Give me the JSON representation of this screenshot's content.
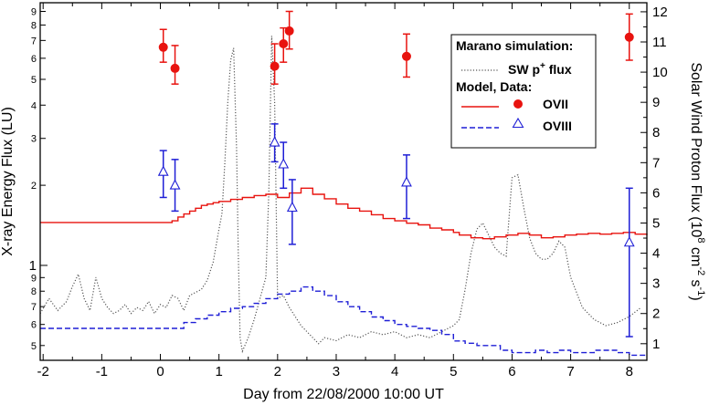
{
  "chart_data": {
    "type": "line",
    "xlabel": "Day from 22/08/2000 10:00 UT",
    "ylabel_left": "X-ray Energy Flux (LU)",
    "ylabel_right_parts": [
      "Solar Wind Proton Flux (10",
      "8",
      " cm",
      "-2",
      " s",
      "-1",
      ")"
    ],
    "xlim": [
      -2.05,
      8.3
    ],
    "ylim_left": [
      0.44,
      9.7
    ],
    "yscale_left": "log",
    "ylim_right": [
      0.45,
      12.3
    ],
    "x_ticks": [
      "-2",
      "-1",
      "0",
      "1",
      "2",
      "3",
      "4",
      "5",
      "6",
      "7",
      "8"
    ],
    "x_tick_values": [
      -2,
      -1,
      0,
      1,
      2,
      3,
      4,
      5,
      6,
      7,
      8
    ],
    "y_left_major_ticks": [
      {
        "value": 1,
        "label": "1"
      },
      {
        "value": 2,
        "label": "2"
      },
      {
        "value": 3,
        "label": "3"
      },
      {
        "value": 4,
        "label": "4"
      },
      {
        "value": 5,
        "label": "5"
      },
      {
        "value": 6,
        "label": "6"
      },
      {
        "value": 7,
        "label": "7"
      },
      {
        "value": 8,
        "label": "8"
      },
      {
        "value": 9,
        "label": "9"
      }
    ],
    "y_left_minor_ticks": [
      {
        "value": 0.5,
        "label": "5"
      },
      {
        "value": 0.6,
        "label": "6"
      },
      {
        "value": 0.7,
        "label": "7"
      },
      {
        "value": 0.8,
        "label": "8"
      },
      {
        "value": 0.9,
        "label": "9"
      }
    ],
    "y_right_ticks": [
      "1",
      "2",
      "3",
      "4",
      "5",
      "6",
      "7",
      "8",
      "9",
      "10",
      "11",
      "12"
    ],
    "legend": {
      "position": "top-right",
      "title": "Marano simulation:",
      "entries": [
        {
          "label": "SW p",
          "sup": "+",
          "rest": " flux",
          "style": "dotted",
          "color": "#555555"
        },
        {
          "label": "Model, Data:",
          "style": "none"
        },
        {
          "label": "OVII",
          "style": "solid",
          "marker": "filled-circle",
          "color": "#e8130f"
        },
        {
          "label": "OVIII",
          "style": "dashed",
          "marker": "open-triangle",
          "color": "#1f1fd6"
        }
      ]
    },
    "series": [
      {
        "name": "SW p+ flux",
        "axis": "right",
        "color": "#555555",
        "style": "dotted",
        "x": [
          -2.05,
          -1.9,
          -1.75,
          -1.6,
          -1.5,
          -1.4,
          -1.3,
          -1.2,
          -1.1,
          -1.0,
          -0.9,
          -0.8,
          -0.7,
          -0.6,
          -0.5,
          -0.4,
          -0.3,
          -0.2,
          -0.1,
          0.0,
          0.1,
          0.2,
          0.3,
          0.4,
          0.5,
          0.6,
          0.7,
          0.8,
          0.9,
          1.0,
          1.05,
          1.1,
          1.15,
          1.2,
          1.25,
          1.3,
          1.33,
          1.36,
          1.4,
          1.5,
          1.6,
          1.7,
          1.8,
          1.85,
          1.9,
          1.95,
          2.0,
          2.1,
          2.2,
          2.3,
          2.4,
          2.5,
          2.6,
          2.7,
          2.8,
          3.0,
          3.2,
          3.4,
          3.6,
          3.8,
          4.0,
          4.2,
          4.4,
          4.6,
          4.8,
          5.0,
          5.1,
          5.2,
          5.3,
          5.4,
          5.5,
          5.6,
          5.7,
          5.8,
          5.9,
          6.0,
          6.1,
          6.2,
          6.3,
          6.4,
          6.5,
          6.6,
          6.7,
          6.8,
          6.9,
          7.0,
          7.2,
          7.4,
          7.6,
          7.8,
          8.0,
          8.2
        ],
        "values": [
          2.0,
          2.5,
          2.1,
          2.4,
          2.9,
          3.3,
          2.5,
          2.1,
          3.2,
          2.5,
          2.2,
          2.0,
          2.1,
          2.3,
          2.0,
          2.2,
          2.1,
          2.4,
          2.0,
          2.3,
          2.2,
          2.6,
          2.5,
          2.1,
          2.6,
          2.7,
          2.8,
          3.1,
          3.7,
          4.8,
          5.3,
          7.0,
          9.0,
          10.4,
          10.8,
          7.5,
          4.0,
          1.2,
          0.75,
          1.2,
          1.8,
          2.5,
          3.2,
          6.0,
          11.2,
          9.0,
          2.5,
          2.6,
          2.2,
          1.9,
          1.6,
          1.4,
          1.2,
          1.0,
          1.2,
          1.1,
          1.3,
          1.2,
          1.4,
          1.3,
          1.4,
          1.2,
          1.3,
          1.2,
          1.4,
          1.6,
          1.8,
          2.8,
          4.0,
          4.8,
          5.0,
          4.6,
          4.2,
          4.0,
          3.9,
          6.5,
          6.6,
          5.5,
          4.5,
          4.0,
          3.8,
          3.8,
          4.0,
          4.4,
          4.2,
          3.2,
          2.2,
          1.8,
          1.6,
          1.7,
          1.9,
          2.2
        ]
      },
      {
        "name": "OVII",
        "axis": "left",
        "color": "#e8130f",
        "style": "step",
        "x": [
          -2.05,
          0.2,
          0.3,
          0.4,
          0.5,
          0.6,
          0.7,
          0.8,
          0.9,
          1.0,
          1.2,
          1.4,
          1.6,
          1.8,
          2.0,
          2.2,
          2.4,
          2.6,
          2.8,
          3.0,
          3.2,
          3.4,
          3.6,
          3.8,
          4.0,
          4.2,
          4.4,
          4.6,
          4.8,
          5.0,
          5.1,
          5.3,
          5.5,
          5.7,
          5.9,
          6.1,
          6.3,
          6.5,
          6.7,
          6.9,
          7.1,
          7.3,
          7.5,
          7.7,
          7.9,
          8.1,
          8.3
        ],
        "values": [
          1.45,
          1.47,
          1.52,
          1.56,
          1.6,
          1.64,
          1.68,
          1.7,
          1.72,
          1.74,
          1.77,
          1.8,
          1.83,
          1.85,
          1.8,
          1.87,
          1.95,
          1.85,
          1.78,
          1.7,
          1.64,
          1.6,
          1.55,
          1.5,
          1.47,
          1.44,
          1.42,
          1.38,
          1.36,
          1.33,
          1.3,
          1.27,
          1.26,
          1.28,
          1.3,
          1.32,
          1.3,
          1.27,
          1.28,
          1.3,
          1.31,
          1.32,
          1.31,
          1.32,
          1.33,
          1.31,
          1.3
        ]
      },
      {
        "name": "OVIII",
        "axis": "left",
        "color": "#1f1fd6",
        "style": "step-dashed",
        "x": [
          -2.05,
          0.4,
          0.6,
          0.8,
          1.0,
          1.2,
          1.4,
          1.6,
          1.8,
          2.0,
          2.2,
          2.4,
          2.6,
          2.8,
          3.0,
          3.2,
          3.4,
          3.6,
          3.8,
          4.0,
          4.2,
          4.4,
          4.6,
          4.8,
          5.0,
          5.2,
          5.4,
          5.6,
          5.8,
          6.0,
          6.2,
          6.4,
          6.6,
          6.8,
          7.0,
          7.2,
          7.4,
          7.6,
          7.8,
          8.0,
          8.2,
          8.3
        ],
        "values": [
          0.58,
          0.61,
          0.63,
          0.65,
          0.67,
          0.69,
          0.7,
          0.72,
          0.75,
          0.78,
          0.8,
          0.83,
          0.8,
          0.77,
          0.73,
          0.7,
          0.67,
          0.64,
          0.62,
          0.6,
          0.59,
          0.58,
          0.57,
          0.55,
          0.52,
          0.51,
          0.5,
          0.5,
          0.48,
          0.47,
          0.47,
          0.48,
          0.47,
          0.48,
          0.47,
          0.47,
          0.48,
          0.48,
          0.47,
          0.46,
          0.46,
          0.46
        ]
      }
    ],
    "data_points": {
      "OVII": [
        {
          "x": 0.05,
          "y": 6.6,
          "lo": 5.8,
          "hi": 7.7
        },
        {
          "x": 0.25,
          "y": 5.5,
          "lo": 4.8,
          "hi": 6.7
        },
        {
          "x": 1.95,
          "y": 5.6,
          "lo": 4.8,
          "hi": 6.8
        },
        {
          "x": 2.1,
          "y": 6.8,
          "lo": 5.8,
          "hi": 7.8
        },
        {
          "x": 2.2,
          "y": 7.6,
          "lo": 6.5,
          "hi": 9.0
        },
        {
          "x": 4.2,
          "y": 6.1,
          "lo": 5.1,
          "hi": 7.4
        },
        {
          "x": 8.0,
          "y": 7.2,
          "lo": 5.9,
          "hi": 8.8
        }
      ],
      "OVIII": [
        {
          "x": 0.05,
          "y": 2.25,
          "lo": 1.8,
          "hi": 2.7
        },
        {
          "x": 0.25,
          "y": 2.0,
          "lo": 1.6,
          "hi": 2.5
        },
        {
          "x": 1.95,
          "y": 2.9,
          "lo": 2.45,
          "hi": 3.4
        },
        {
          "x": 2.1,
          "y": 2.4,
          "lo": 1.95,
          "hi": 2.9
        },
        {
          "x": 2.25,
          "y": 1.65,
          "lo": 1.2,
          "hi": 2.1
        },
        {
          "x": 4.2,
          "y": 2.05,
          "lo": 1.5,
          "hi": 2.6
        },
        {
          "x": 8.0,
          "y": 1.22,
          "lo": 0.54,
          "hi": 1.95
        }
      ]
    }
  }
}
